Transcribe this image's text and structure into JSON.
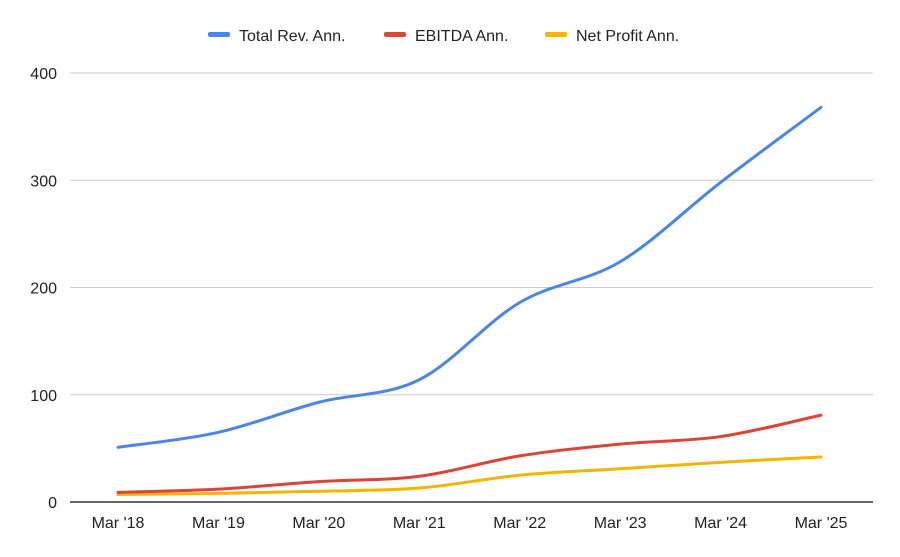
{
  "chart_data": {
    "type": "line",
    "categories": [
      "Mar '18",
      "Mar '19",
      "Mar '20",
      "Mar '21",
      "Mar '22",
      "Mar '23",
      "Mar '24",
      "Mar '25"
    ],
    "series": [
      {
        "name": "Total Rev. Ann.",
        "color": "#4a86e8",
        "values": [
          51,
          65,
          93,
          114,
          186,
          224,
          298,
          368
        ]
      },
      {
        "name": "EBITDA Ann.",
        "color": "#db4437",
        "values": [
          9,
          12,
          19,
          24,
          43,
          54,
          61,
          81
        ]
      },
      {
        "name": "Net Profit Ann.",
        "color": "#f4b400",
        "values": [
          7,
          8,
          10,
          13,
          25,
          31,
          37,
          42
        ]
      }
    ],
    "yticks": [
      "0",
      "100",
      "200",
      "300",
      "400"
    ],
    "ylim": [
      0,
      400
    ],
    "grid": true,
    "legend": "top-center",
    "smooth": true
  }
}
